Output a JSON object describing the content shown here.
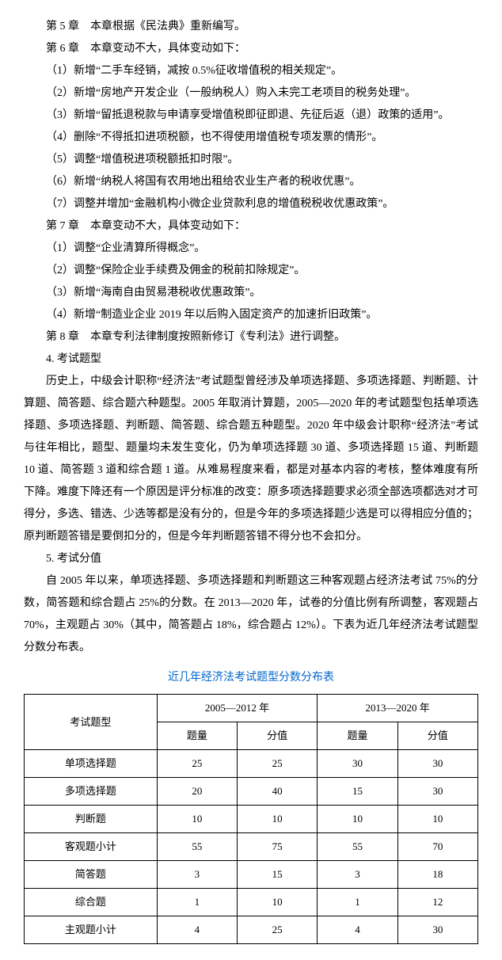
{
  "lines": [
    "第 5 章　本章根据《民法典》重新编写。",
    "第 6 章　本章变动不大，具体变动如下：",
    "（1）新增“二手车经销，减按 0.5%征收增值税的相关规定”。",
    "（2）新增“房地产开发企业（一般纳税人）购入未完工老项目的税务处理”。",
    "（3）新增“留抵退税款与申请享受增值税即征即退、先征后返（退）政策的适用”。",
    "（4）删除“不得抵扣进项税额，也不得使用增值税专项发票的情形”。",
    "（5）调整“增值税进项税额抵扣时限”。",
    "（6）新增“纳税人将国有农用地出租给农业生产者的税收优惠”。",
    "（7）调整并增加“金融机构小微企业贷款利息的增值税税收优惠政策”。",
    "第 7 章　本章变动不大，具体变动如下：",
    "（1）调整“企业清算所得概念”。",
    "（2）调整“保险企业手续费及佣金的税前扣除规定”。",
    "（3）新增“海南自由贸易港税收优惠政策”。",
    "（4）新增“制造业企业 2019 年以后购入固定资产的加速折旧政策”。",
    "第 8 章　本章专利法律制度按照新修订《专利法》进行调整。",
    "4. 考试题型",
    "历史上，中级会计职称“经济法”考试题型曾经涉及单项选择题、多项选择题、判断题、计算题、简答题、综合题六种题型。2005 年取消计算题，2005—2020 年的考试题型包括单项选择题、多项选择题、判断题、简答题、综合题五种题型。2020 年中级会计职称“经济法”考试与往年相比，题型、题量均未发生变化，仍为单项选择题 30 道、多项选择题 15 道、判断题 10 道、简答题 3 道和综合题 1 道。从难易程度来看，都是对基本内容的考核，整体难度有所下降。难度下降还有一个原因是评分标准的改变：原多项选择题要求必须全部选项都选对才可得分，多选、错选、少选等都是没有分的，但是今年的多项选择题少选是可以得相应分值的；原判断题答错是要倒扣分的，但是今年判断题答错不得分也不会扣分。",
    "5. 考试分值",
    "自 2005 年以来，单项选择题、多项选择题和判断题这三种客观题占经济法考试 75%的分数，简答题和综合题占 25%的分数。在 2013—2020 年，试卷的分值比例有所调整，客观题占 70%，主观题占 30%（其中，简答题占 18%，综合题占 12%）。下表为近几年经济法考试题型分数分布表。"
  ],
  "table": {
    "title": "近几年经济法考试题型分数分布表",
    "header_row1_col0": "考试题型",
    "header_row1_col1": "2005—2012 年",
    "header_row1_col2": "2013—2020 年",
    "header_sub": [
      "题量",
      "分值",
      "题量",
      "分值"
    ],
    "rows": [
      [
        "单项选择题",
        "25",
        "25",
        "30",
        "30"
      ],
      [
        "多项选择题",
        "20",
        "40",
        "15",
        "30"
      ],
      [
        "判断题",
        "10",
        "10",
        "10",
        "10"
      ],
      [
        "客观题小计",
        "55",
        "75",
        "55",
        "70"
      ],
      [
        "简答题",
        "3",
        "15",
        "3",
        "18"
      ],
      [
        "综合题",
        "1",
        "10",
        "1",
        "12"
      ],
      [
        "主观题小计",
        "4",
        "25",
        "4",
        "30"
      ]
    ]
  }
}
